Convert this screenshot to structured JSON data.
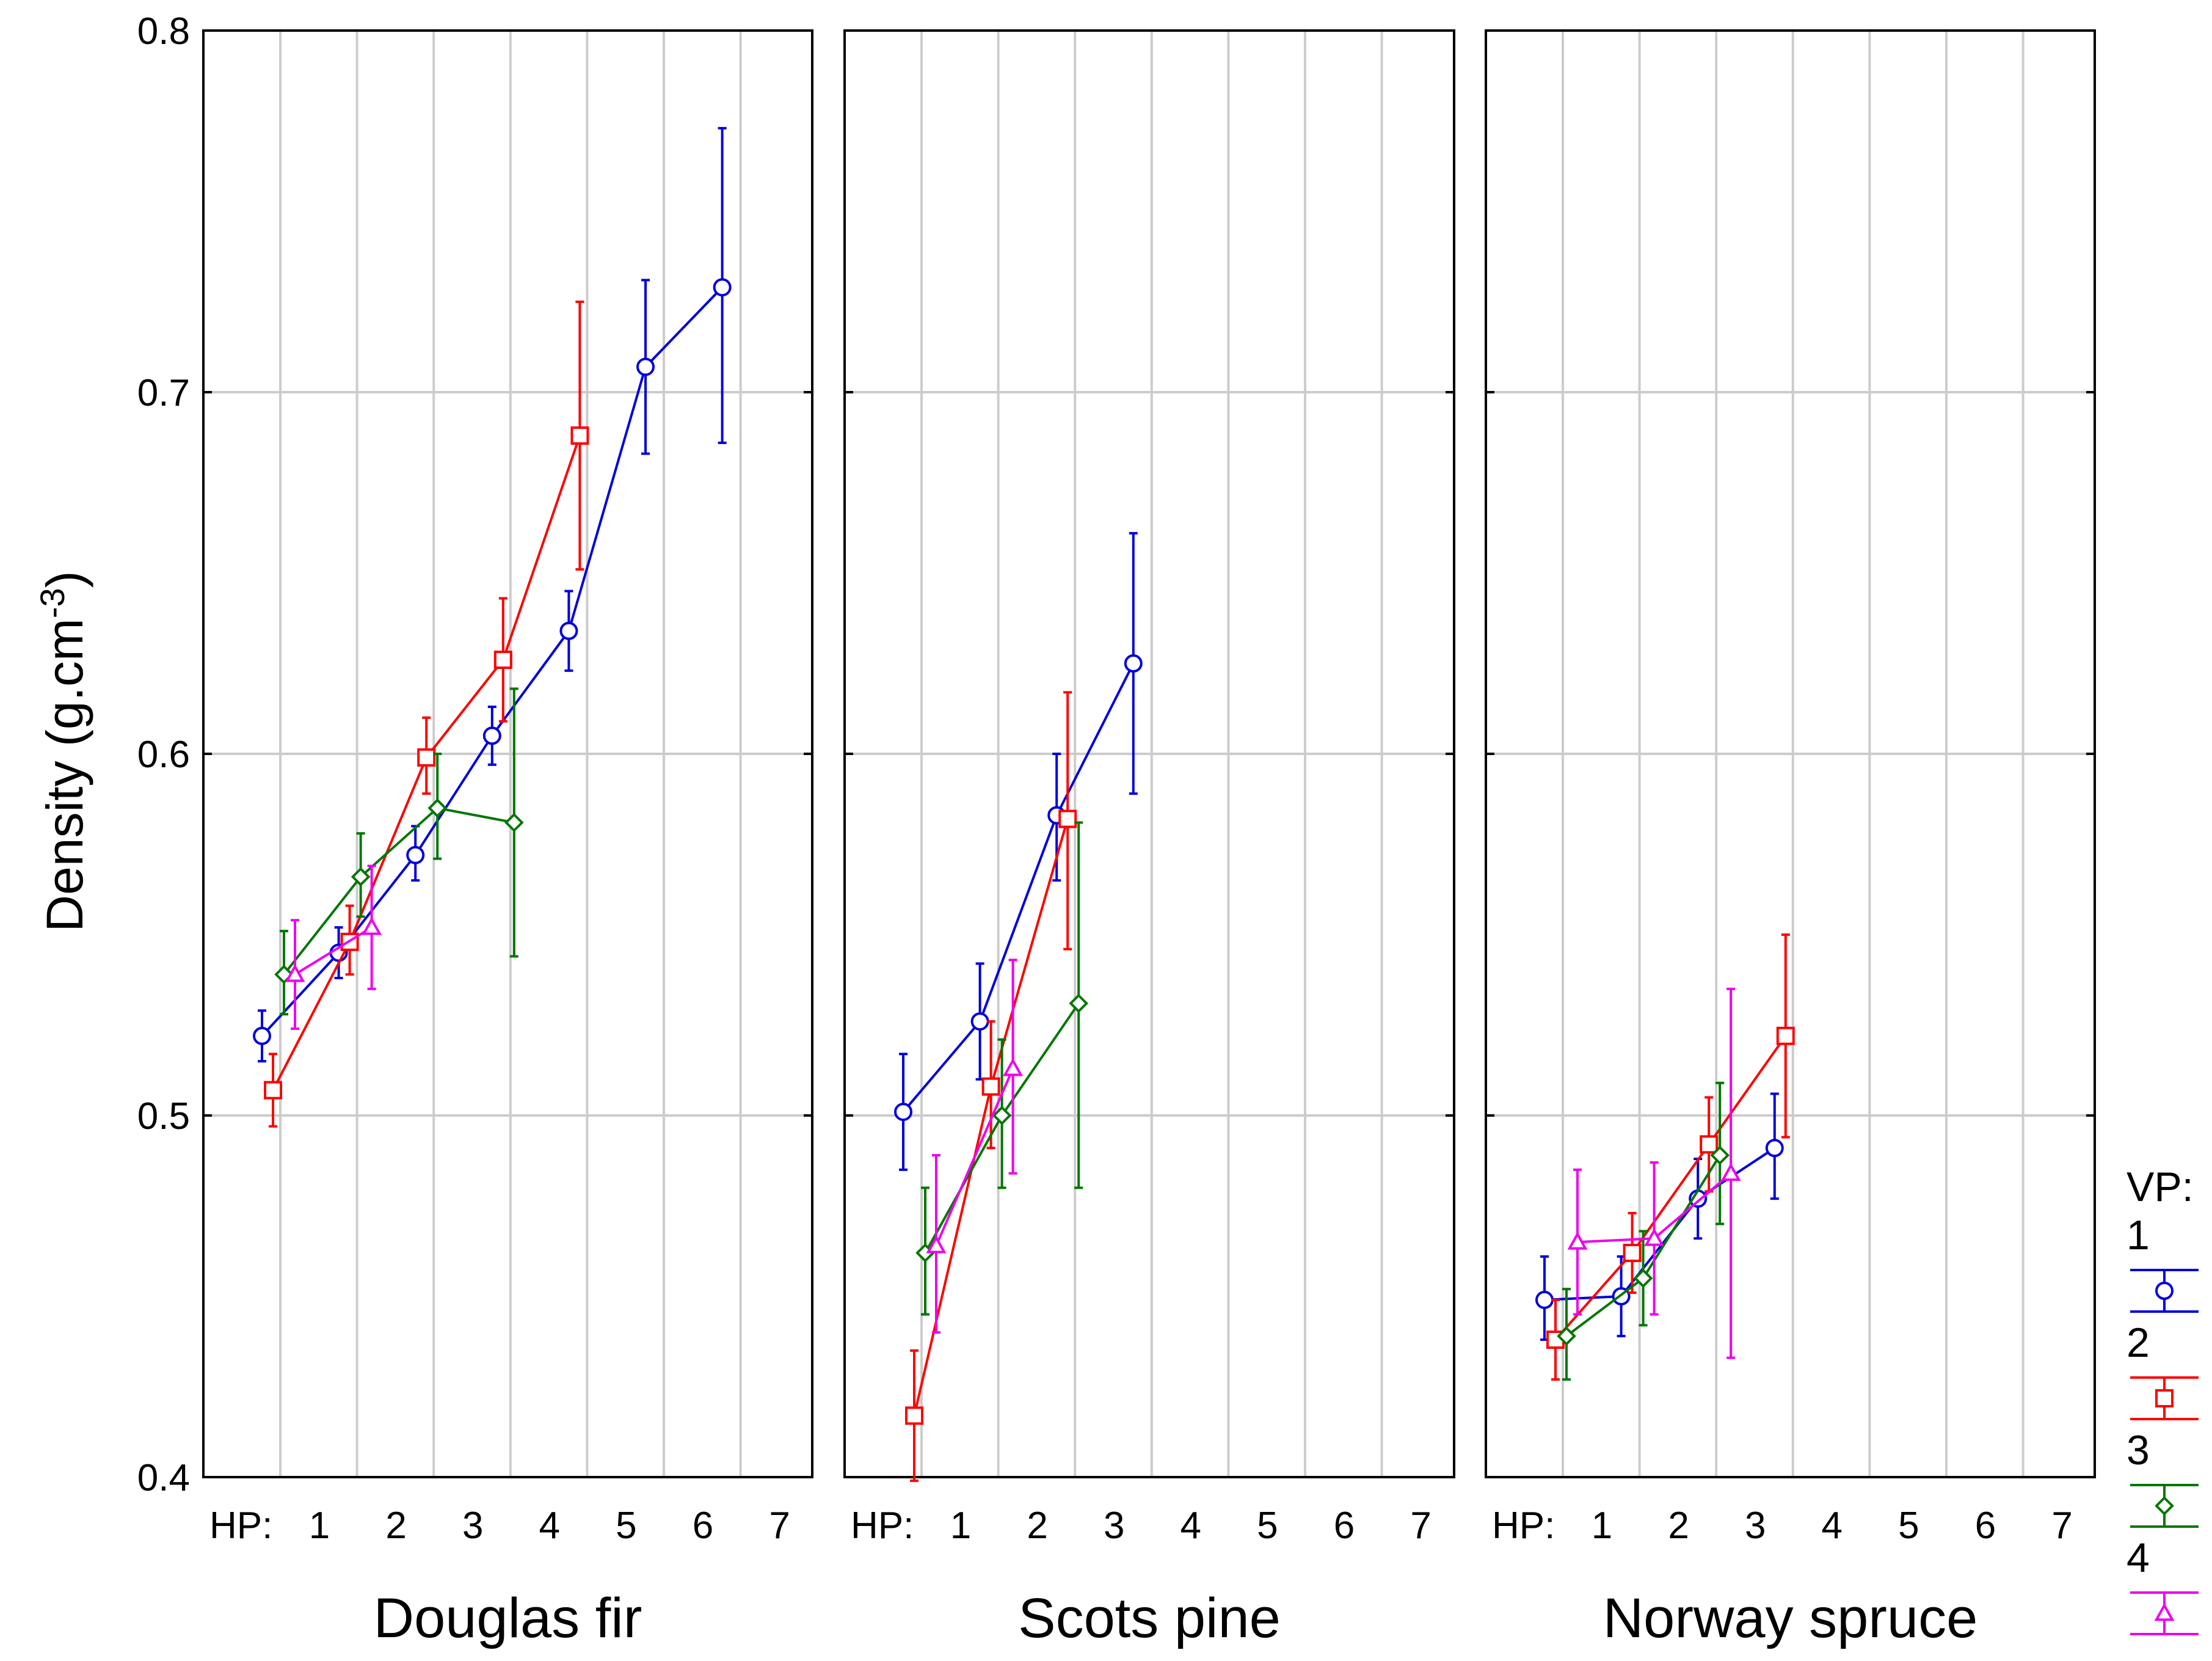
{
  "chart_data": {
    "type": "line",
    "subtype": "means-with-error-bars",
    "ylabel": "Density (g.cm",
    "ylabel_sup": "-3",
    "ylabel_close": ")",
    "ylim": [
      0.4,
      0.8
    ],
    "yticks": [
      "0.4",
      "0.5",
      "0.6",
      "0.7",
      "0.8"
    ],
    "x_prefix": "HP:",
    "xticks": [
      "1",
      "2",
      "3",
      "4",
      "5",
      "6",
      "7"
    ],
    "legend": {
      "title": "VP:",
      "entries": [
        {
          "label": "1",
          "color": "#0000dd",
          "marker": "circle"
        },
        {
          "label": "2",
          "color": "#ff0000",
          "marker": "square"
        },
        {
          "label": "3",
          "color": "#007700",
          "marker": "diamond"
        },
        {
          "label": "4",
          "color": "#ee00ee",
          "marker": "triangle"
        }
      ]
    },
    "panels": [
      {
        "label": "Douglas fir",
        "series": [
          {
            "vp": "1",
            "points": [
              {
                "hp": 1,
                "mean": 0.522,
                "lo": 0.515,
                "hi": 0.529
              },
              {
                "hp": 2,
                "mean": 0.545,
                "lo": 0.538,
                "hi": 0.552
              },
              {
                "hp": 3,
                "mean": 0.572,
                "lo": 0.565,
                "hi": 0.58
              },
              {
                "hp": 4,
                "mean": 0.605,
                "lo": 0.597,
                "hi": 0.613
              },
              {
                "hp": 5,
                "mean": 0.634,
                "lo": 0.623,
                "hi": 0.645
              },
              {
                "hp": 6,
                "mean": 0.707,
                "lo": 0.683,
                "hi": 0.731
              },
              {
                "hp": 7,
                "mean": 0.729,
                "lo": 0.686,
                "hi": 0.773
              }
            ]
          },
          {
            "vp": "2",
            "points": [
              {
                "hp": 1,
                "mean": 0.507,
                "lo": 0.497,
                "hi": 0.517
              },
              {
                "hp": 2,
                "mean": 0.548,
                "lo": 0.539,
                "hi": 0.558
              },
              {
                "hp": 3,
                "mean": 0.599,
                "lo": 0.589,
                "hi": 0.61
              },
              {
                "hp": 4,
                "mean": 0.626,
                "lo": 0.609,
                "hi": 0.643
              },
              {
                "hp": 5,
                "mean": 0.688,
                "lo": 0.651,
                "hi": 0.725
              }
            ]
          },
          {
            "vp": "3",
            "points": [
              {
                "hp": 1,
                "mean": 0.539,
                "lo": 0.528,
                "hi": 0.551
              },
              {
                "hp": 2,
                "mean": 0.566,
                "lo": 0.555,
                "hi": 0.578
              },
              {
                "hp": 3,
                "mean": 0.585,
                "lo": 0.571,
                "hi": 0.6
              },
              {
                "hp": 4,
                "mean": 0.581,
                "lo": 0.544,
                "hi": 0.618
              }
            ]
          },
          {
            "vp": "4",
            "points": [
              {
                "hp": 1,
                "mean": 0.539,
                "lo": 0.524,
                "hi": 0.554
              },
              {
                "hp": 2,
                "mean": 0.552,
                "lo": 0.535,
                "hi": 0.569
              }
            ]
          }
        ]
      },
      {
        "label": "Scots pine",
        "series": [
          {
            "vp": "1",
            "points": [
              {
                "hp": 1,
                "mean": 0.501,
                "lo": 0.485,
                "hi": 0.517
              },
              {
                "hp": 2,
                "mean": 0.526,
                "lo": 0.51,
                "hi": 0.542
              },
              {
                "hp": 3,
                "mean": 0.583,
                "lo": 0.565,
                "hi": 0.6
              },
              {
                "hp": 4,
                "mean": 0.625,
                "lo": 0.589,
                "hi": 0.661
              }
            ]
          },
          {
            "vp": "2",
            "points": [
              {
                "hp": 1,
                "mean": 0.417,
                "lo": 0.399,
                "hi": 0.435
              },
              {
                "hp": 2,
                "mean": 0.508,
                "lo": 0.491,
                "hi": 0.526
              },
              {
                "hp": 3,
                "mean": 0.582,
                "lo": 0.546,
                "hi": 0.617
              }
            ]
          },
          {
            "vp": "3",
            "points": [
              {
                "hp": 1,
                "mean": 0.462,
                "lo": 0.445,
                "hi": 0.48
              },
              {
                "hp": 2,
                "mean": 0.5,
                "lo": 0.48,
                "hi": 0.521
              },
              {
                "hp": 3,
                "mean": 0.531,
                "lo": 0.48,
                "hi": 0.581
              }
            ]
          },
          {
            "vp": "4",
            "points": [
              {
                "hp": 1,
                "mean": 0.464,
                "lo": 0.44,
                "hi": 0.489
              },
              {
                "hp": 2,
                "mean": 0.513,
                "lo": 0.484,
                "hi": 0.543
              }
            ]
          }
        ]
      },
      {
        "label": "Norway spruce",
        "series": [
          {
            "vp": "1",
            "points": [
              {
                "hp": 1,
                "mean": 0.449,
                "lo": 0.438,
                "hi": 0.461
              },
              {
                "hp": 2,
                "mean": 0.45,
                "lo": 0.439,
                "hi": 0.461
              },
              {
                "hp": 3,
                "mean": 0.477,
                "lo": 0.466,
                "hi": 0.488
              },
              {
                "hp": 4,
                "mean": 0.491,
                "lo": 0.477,
                "hi": 0.506
              }
            ]
          },
          {
            "vp": "2",
            "points": [
              {
                "hp": 1,
                "mean": 0.438,
                "lo": 0.427,
                "hi": 0.449
              },
              {
                "hp": 2,
                "mean": 0.462,
                "lo": 0.451,
                "hi": 0.473
              },
              {
                "hp": 3,
                "mean": 0.492,
                "lo": 0.479,
                "hi": 0.505
              },
              {
                "hp": 4,
                "mean": 0.522,
                "lo": 0.494,
                "hi": 0.55
              }
            ]
          },
          {
            "vp": "3",
            "points": [
              {
                "hp": 1,
                "mean": 0.439,
                "lo": 0.427,
                "hi": 0.452
              },
              {
                "hp": 2,
                "mean": 0.455,
                "lo": 0.442,
                "hi": 0.468
              },
              {
                "hp": 3,
                "mean": 0.489,
                "lo": 0.47,
                "hi": 0.509
              }
            ]
          },
          {
            "vp": "4",
            "points": [
              {
                "hp": 1,
                "mean": 0.465,
                "lo": 0.445,
                "hi": 0.485
              },
              {
                "hp": 2,
                "mean": 0.466,
                "lo": 0.445,
                "hi": 0.487
              },
              {
                "hp": 3,
                "mean": 0.484,
                "lo": 0.433,
                "hi": 0.535
              }
            ]
          }
        ]
      }
    ]
  }
}
